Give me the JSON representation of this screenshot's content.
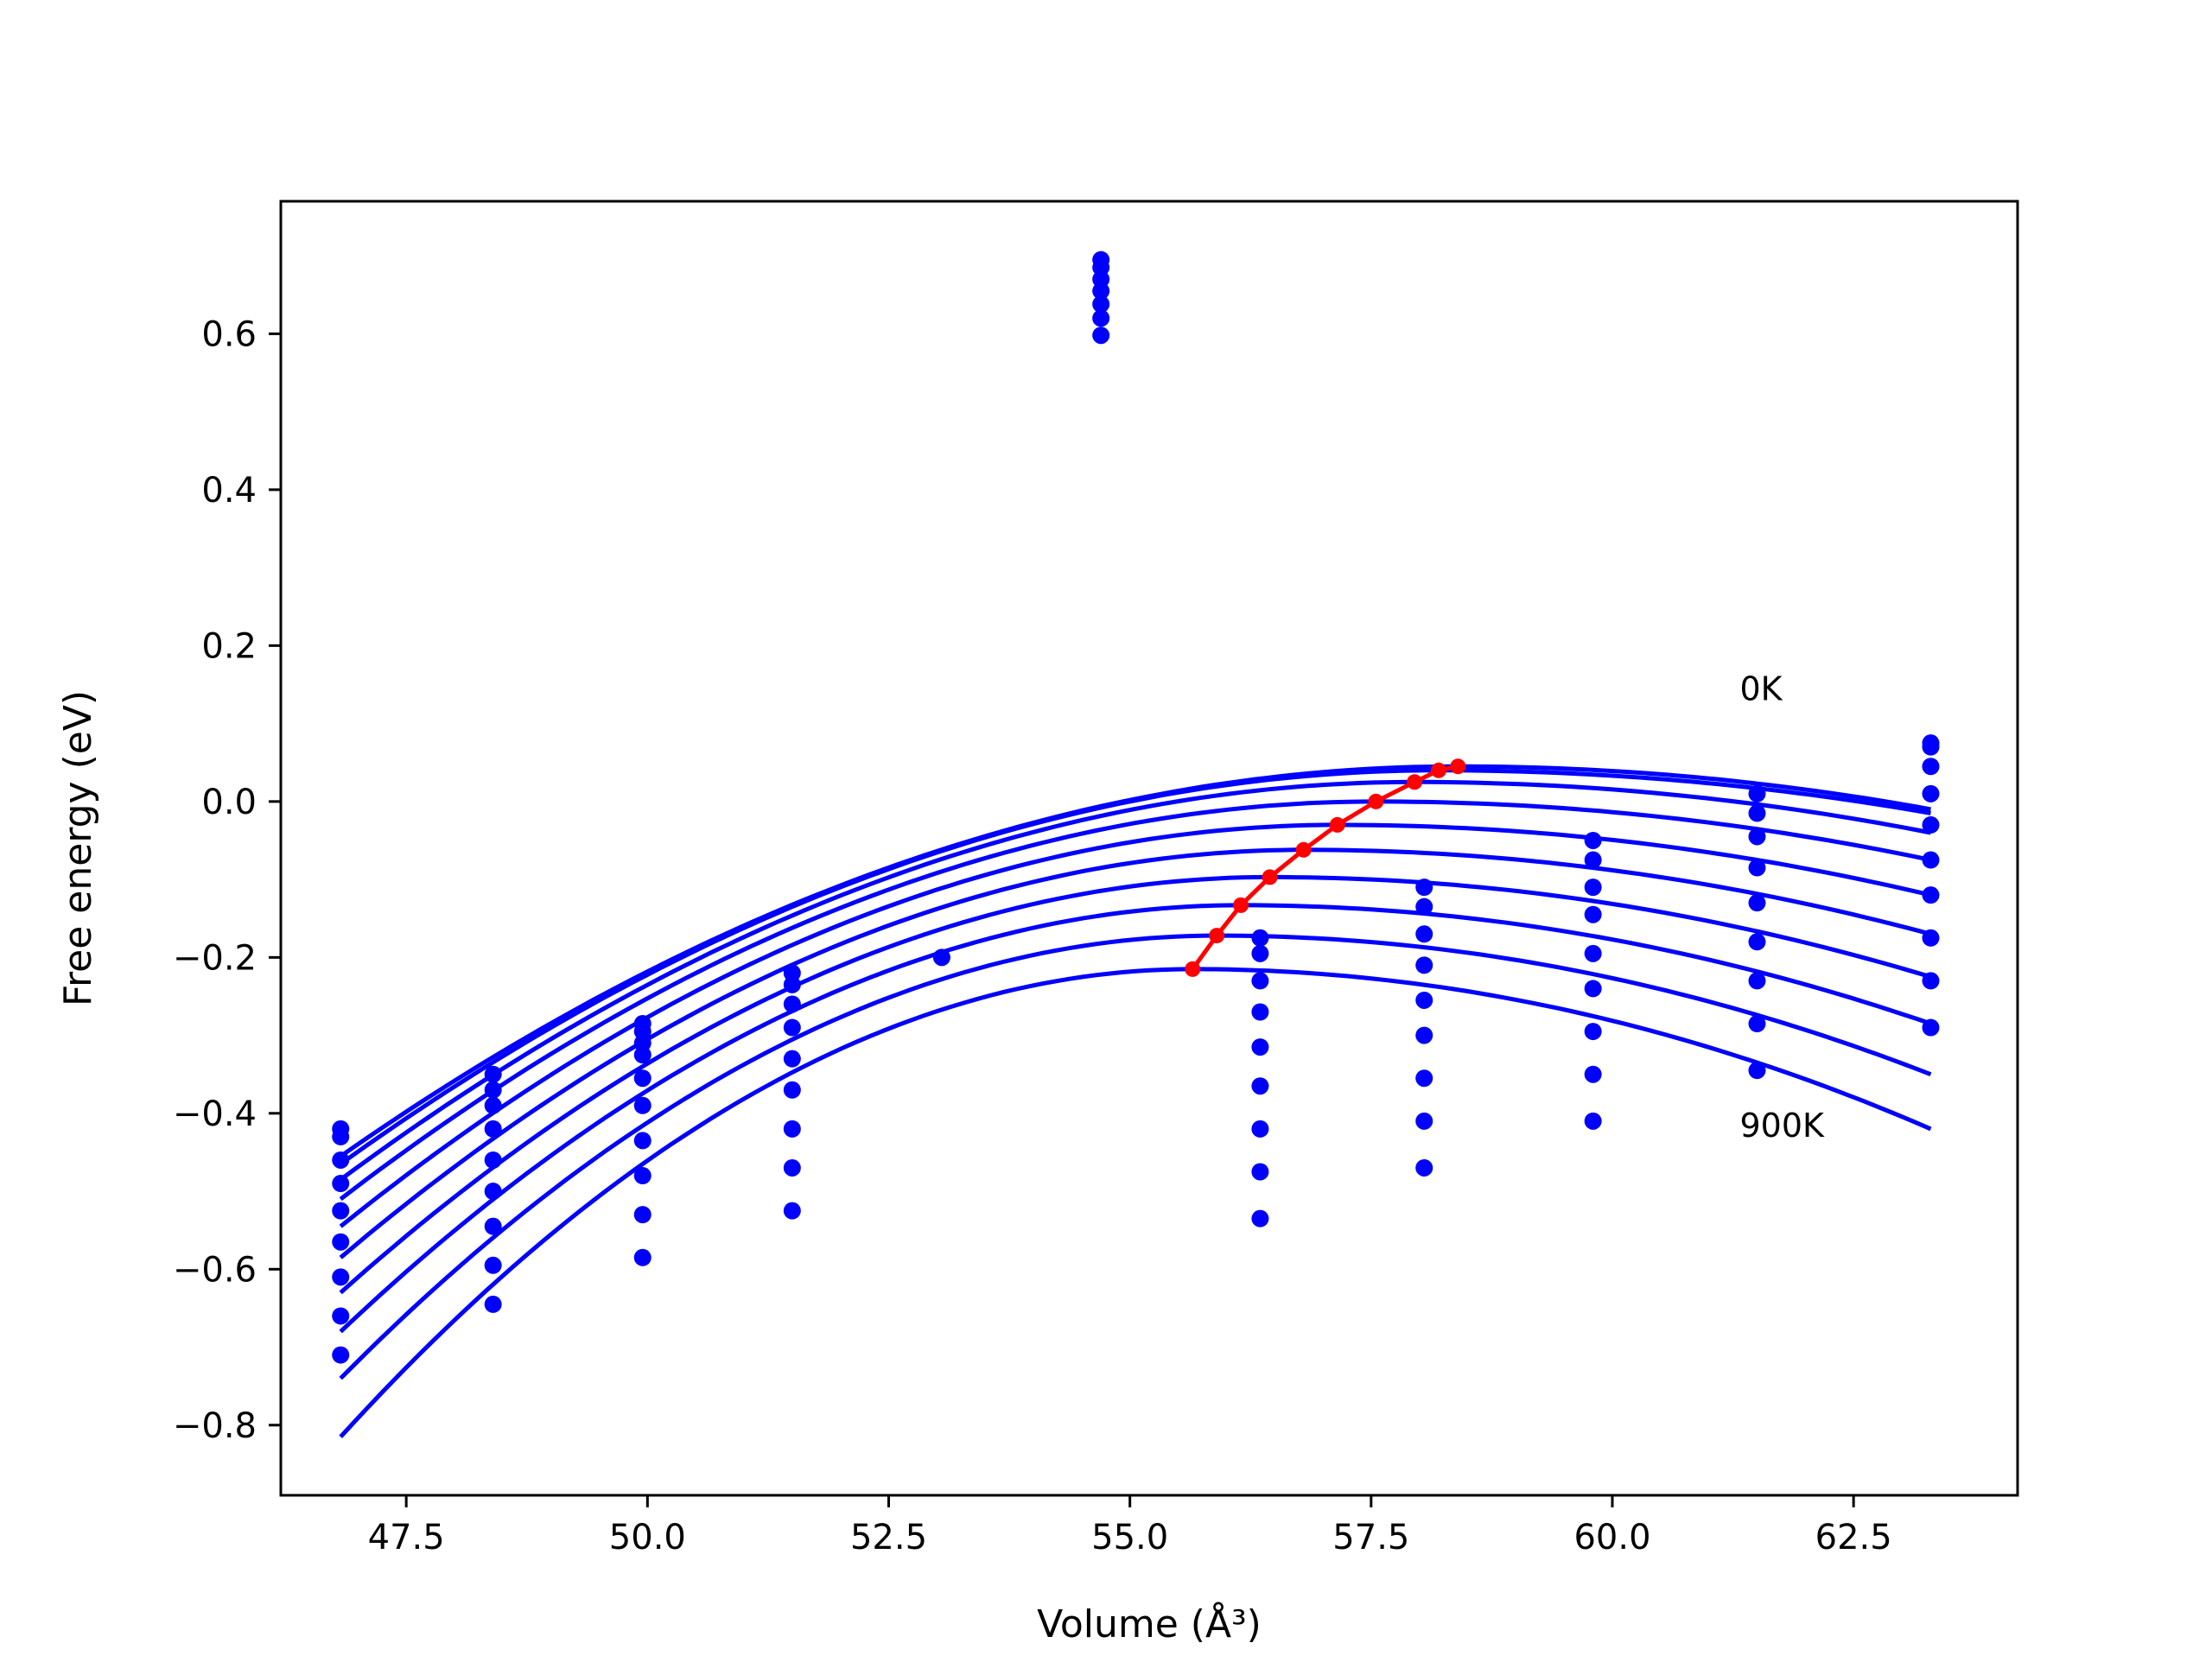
{
  "chart_data": {
    "type": "scatter",
    "title": "",
    "xlabel": "Volume (Å³)",
    "ylabel": "Free energy (eV)",
    "xlim": [
      46.2,
      64.2
    ],
    "ylim": [
      -0.89,
      0.77
    ],
    "xticks": [
      47.5,
      50.0,
      52.5,
      55.0,
      57.5,
      60.0,
      62.5
    ],
    "xtick_labels": [
      "47.5",
      "50.0",
      "52.5",
      "55.0",
      "57.5",
      "60.0",
      "62.5"
    ],
    "yticks": [
      0.6,
      0.4,
      0.2,
      0.0,
      -0.2,
      -0.4,
      -0.6,
      -0.8
    ],
    "ytick_labels": [
      "0.6",
      "0.4",
      "0.2",
      "0.0",
      "−0.2",
      "−0.4",
      "−0.6",
      "−0.8"
    ],
    "grid": false,
    "annotations": [
      {
        "text": "0K",
        "x": 61.5,
        "y": 0.13
      },
      {
        "text": "900K",
        "x": 61.5,
        "y": -0.43
      }
    ],
    "scatter_color": "#0000ff",
    "curve_color": "#0000ff",
    "minima_color": "#ff0000",
    "scatter_points": [
      {
        "x": 46.82,
        "y": [
          -0.42,
          -0.43,
          -0.46,
          -0.49,
          -0.525,
          -0.565,
          -0.61,
          -0.66,
          -0.71
        ]
      },
      {
        "x": 48.4,
        "y": [
          -0.35,
          -0.37,
          -0.39,
          -0.42,
          -0.46,
          -0.5,
          -0.545,
          -0.595,
          -0.645
        ]
      },
      {
        "x": 49.95,
        "y": [
          -0.285,
          -0.295,
          -0.31,
          -0.325,
          -0.355,
          -0.39,
          -0.435,
          -0.48,
          -0.53,
          -0.585
        ]
      },
      {
        "x": 51.5,
        "y": [
          -0.22,
          -0.235,
          -0.26,
          -0.29,
          -0.33,
          -0.37,
          -0.42,
          -0.47,
          -0.525
        ]
      },
      {
        "x": 53.05,
        "y": [
          -0.2
        ]
      },
      {
        "x": 54.7,
        "y": [
          0.695,
          0.685,
          0.67,
          0.655,
          0.638,
          0.62,
          0.598
        ]
      },
      {
        "x": 56.35,
        "y": [
          -0.175,
          -0.195,
          -0.23,
          -0.27,
          -0.315,
          -0.365,
          -0.42,
          -0.475,
          -0.535
        ]
      },
      {
        "x": 58.05,
        "y": [
          -0.11,
          -0.135,
          -0.17,
          -0.21,
          -0.255,
          -0.3,
          -0.355,
          -0.41,
          -0.47
        ]
      },
      {
        "x": 59.8,
        "y": [
          -0.05,
          -0.075,
          -0.11,
          -0.145,
          -0.195,
          -0.24,
          -0.295,
          -0.35,
          -0.41
        ]
      },
      {
        "x": 61.5,
        "y": [
          0.01,
          -0.015,
          -0.045,
          -0.085,
          -0.13,
          -0.18,
          -0.23,
          -0.285,
          -0.345
        ]
      },
      {
        "x": 63.3,
        "y": [
          0.075,
          0.07,
          0.045,
          0.01,
          -0.03,
          -0.075,
          -0.12,
          -0.175,
          -0.23,
          -0.29
        ]
      }
    ],
    "curves": [
      {
        "vertex_x": 58.4,
        "vertex_y": 0.045,
        "y_left": -0.455,
        "y_right": -0.01
      },
      {
        "vertex_x": 58.2,
        "vertex_y": 0.04,
        "y_left": -0.465,
        "y_right": -0.015
      },
      {
        "vertex_x": 57.95,
        "vertex_y": 0.025,
        "y_left": -0.485,
        "y_right": -0.04
      },
      {
        "vertex_x": 57.55,
        "vertex_y": 0.0,
        "y_left": -0.51,
        "y_right": -0.075
      },
      {
        "vertex_x": 57.15,
        "vertex_y": -0.03,
        "y_left": -0.545,
        "y_right": -0.12
      },
      {
        "vertex_x": 56.8,
        "vertex_y": -0.062,
        "y_left": -0.585,
        "y_right": -0.17
      },
      {
        "vertex_x": 56.45,
        "vertex_y": -0.097,
        "y_left": -0.63,
        "y_right": -0.225
      },
      {
        "vertex_x": 56.15,
        "vertex_y": -0.133,
        "y_left": -0.68,
        "y_right": -0.285
      },
      {
        "vertex_x": 55.9,
        "vertex_y": -0.172,
        "y_left": -0.74,
        "y_right": -0.35
      },
      {
        "vertex_x": 55.65,
        "vertex_y": -0.215,
        "y_left": -0.815,
        "y_right": -0.42
      }
    ],
    "curve_x_range": [
      46.82,
      63.3
    ],
    "minima": {
      "x": [
        55.65,
        55.9,
        56.15,
        56.45,
        56.8,
        57.15,
        57.55,
        57.95,
        58.2,
        58.4
      ],
      "y": [
        -0.215,
        -0.172,
        -0.133,
        -0.097,
        -0.062,
        -0.03,
        0.0,
        0.025,
        0.04,
        0.045
      ]
    }
  }
}
